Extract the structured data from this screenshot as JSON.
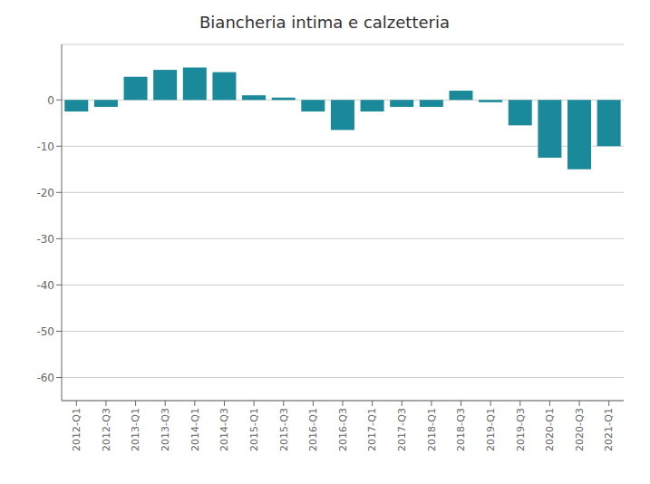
{
  "chart_data": {
    "type": "bar",
    "title": "Biancheria intima e calzetteria",
    "categories": [
      "2012-Q1",
      "2012-Q3",
      "2013-Q1",
      "2013-Q3",
      "2014-Q1",
      "2014-Q3",
      "2015-Q1",
      "2015-Q3",
      "2016-Q1",
      "2016-Q3",
      "2017-Q1",
      "2017-Q3",
      "2018-Q1",
      "2018-Q3",
      "2019-Q1",
      "2019-Q3",
      "2020-Q1",
      "2020-Q3",
      "2021-Q1"
    ],
    "values": [
      -2.5,
      -1.5,
      5.0,
      6.5,
      7.0,
      6.0,
      1.0,
      0.5,
      -2.5,
      -6.5,
      -2.5,
      -1.5,
      -1.5,
      2.0,
      -0.5,
      -5.5,
      -12.5,
      -15.0,
      -10.0
    ],
    "color": "#1a8a9a",
    "ylim": [
      -65,
      12
    ],
    "yticks": [
      0,
      -10,
      -20,
      -30,
      -40,
      -50,
      -60
    ],
    "grid": true
  }
}
